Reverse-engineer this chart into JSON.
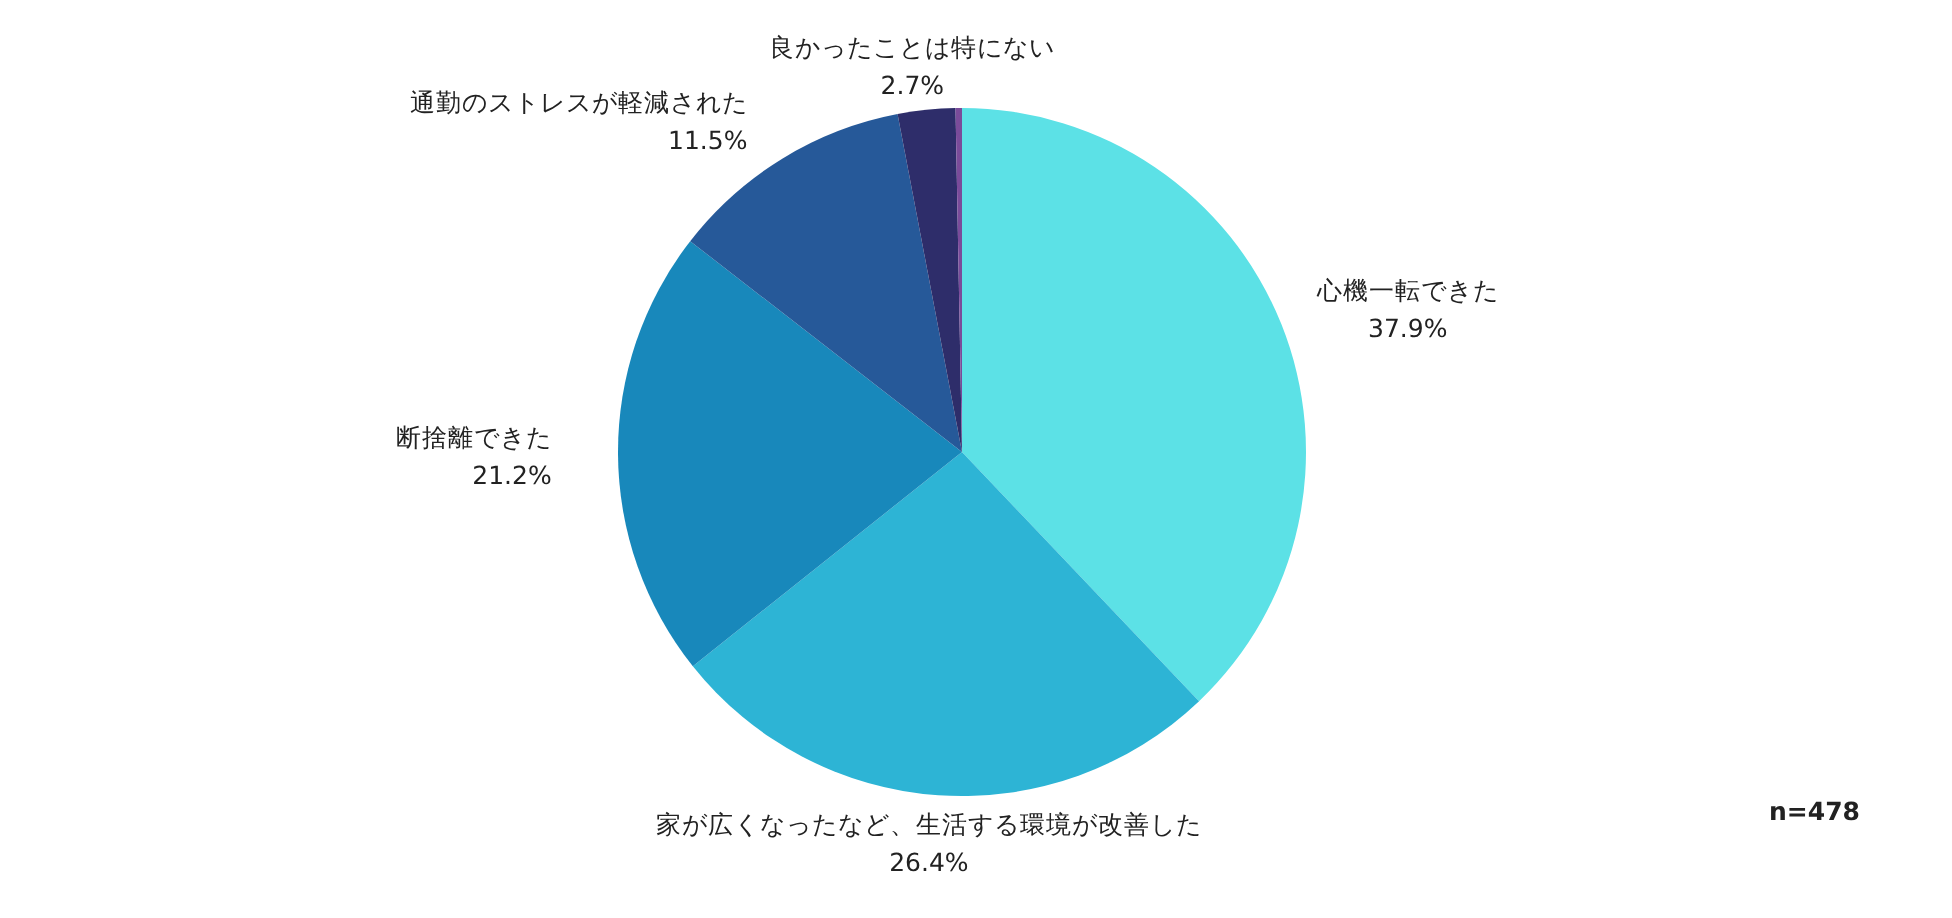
{
  "chart_data": {
    "type": "pie",
    "categories": [
      "心機一転できた",
      "家が広くなったなど、生活する環境が改善した",
      "断捨離できた",
      "通勤のストレスが軽減された",
      "良かったことは特にない",
      null
    ],
    "values": [
      37.9,
      26.4,
      21.2,
      11.5,
      2.7,
      0.3
    ],
    "colors": [
      "#5ce1e6",
      "#2db4d5",
      "#1888bb",
      "#265999",
      "#2e2d6a",
      "#7a4b9a"
    ],
    "value_labels": [
      "37.9%",
      "26.4%",
      "21.2%",
      "11.5%",
      "2.7%",
      null
    ],
    "annotations": [
      "n=478"
    ]
  }
}
